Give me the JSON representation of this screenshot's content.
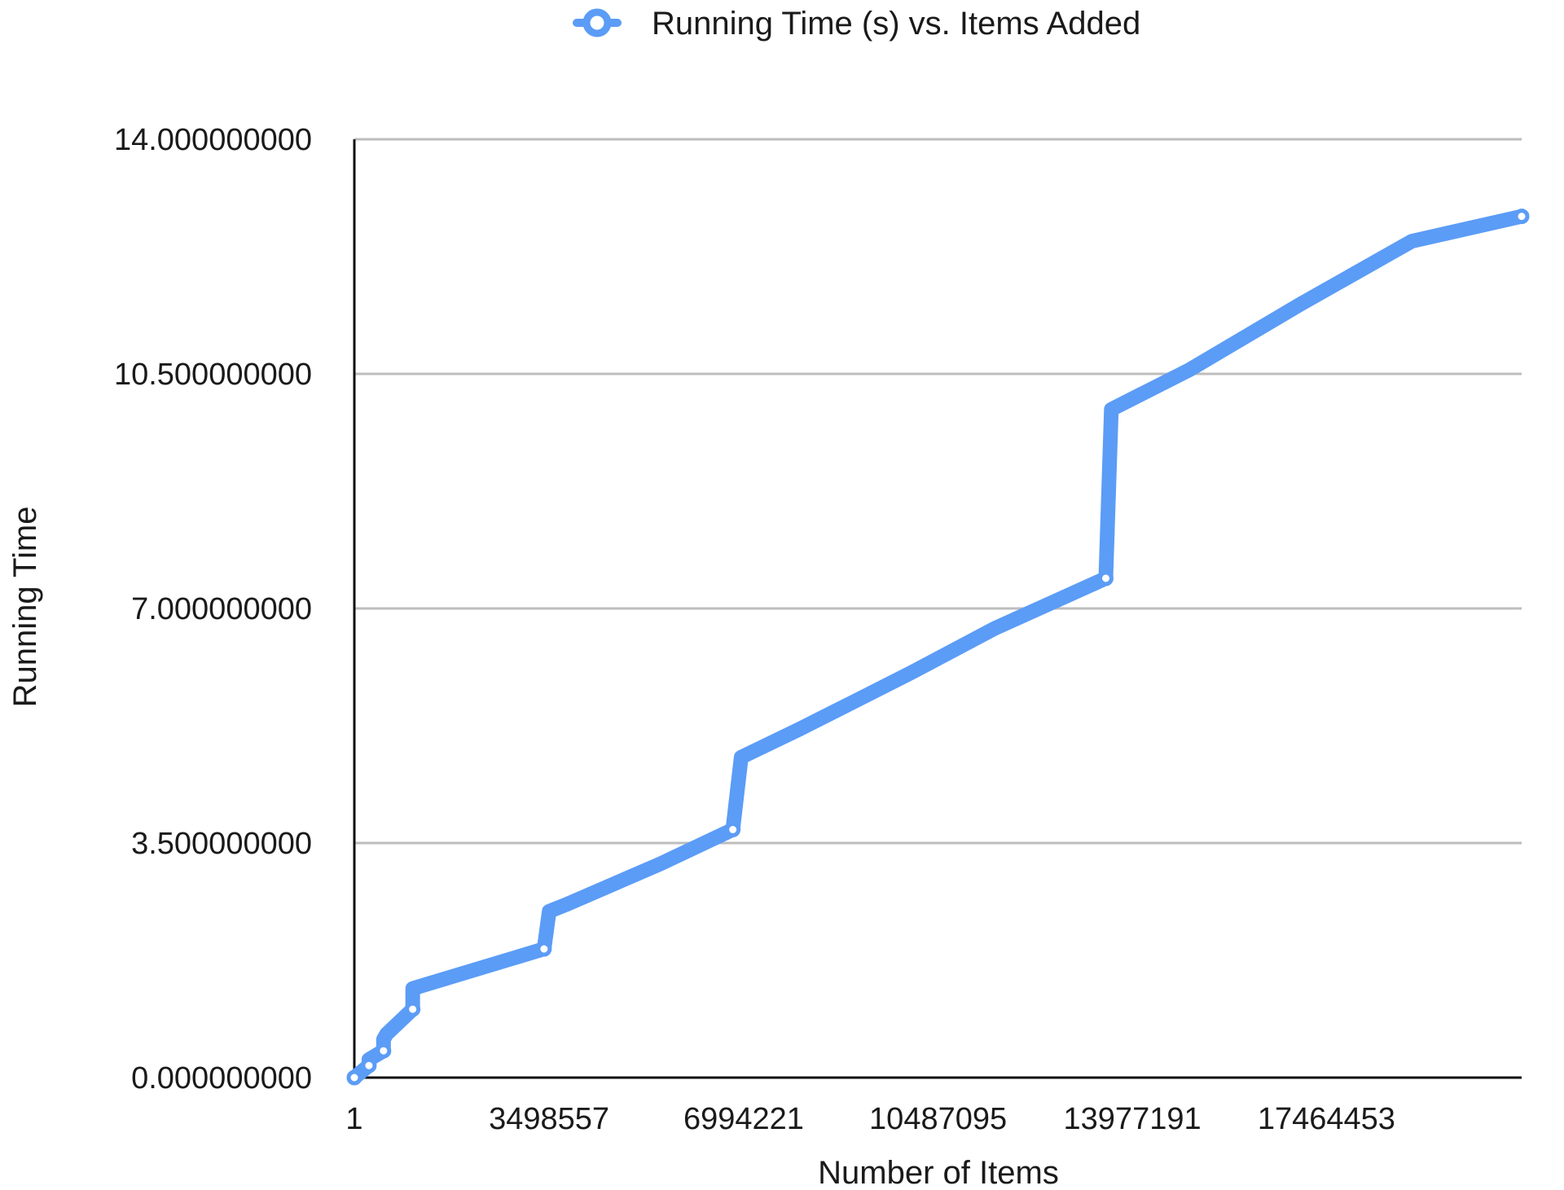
{
  "chart_data": {
    "type": "line",
    "title": "",
    "xlabel": "Number of Items",
    "ylabel": "Running Time",
    "xlim": [
      1,
      20971520
    ],
    "ylim": [
      0,
      14
    ],
    "x_ticks": [
      {
        "value": 1,
        "label": "1"
      },
      {
        "value": 3498557,
        "label": "3498557"
      },
      {
        "value": 6994221,
        "label": "6994221"
      },
      {
        "value": 10487095,
        "label": "10487095"
      },
      {
        "value": 13977191,
        "label": "13977191"
      },
      {
        "value": 17464453,
        "label": "17464453"
      }
    ],
    "y_ticks": [
      {
        "value": 0,
        "label": "0.000000000"
      },
      {
        "value": 3.5,
        "label": "3.500000000"
      },
      {
        "value": 7,
        "label": "7.000000000"
      },
      {
        "value": 10.5,
        "label": "10.500000000"
      },
      {
        "value": 14,
        "label": "14.000000000"
      }
    ],
    "grid": true,
    "legend_position": "top-center",
    "series": [
      {
        "name": "Running Time (s) vs. Items Added",
        "color": "#5b9cf6",
        "points": [
          [
            1,
            0.0
          ],
          [
            131072,
            0.09
          ],
          [
            262144,
            0.18
          ],
          [
            262145,
            0.27
          ],
          [
            524288,
            0.4
          ],
          [
            524289,
            0.57
          ],
          [
            580000,
            0.65
          ],
          [
            1048576,
            1.02
          ],
          [
            1048577,
            1.33
          ],
          [
            3407872,
            1.92
          ],
          [
            3500000,
            2.48
          ],
          [
            3800000,
            2.58
          ],
          [
            5500000,
            3.19
          ],
          [
            6800000,
            3.7
          ],
          [
            6950000,
            4.78
          ],
          [
            8000000,
            5.2
          ],
          [
            9000000,
            5.62
          ],
          [
            10000000,
            6.04
          ],
          [
            11500000,
            6.7
          ],
          [
            13500000,
            7.45
          ],
          [
            13600000,
            9.97
          ],
          [
            15000000,
            10.56
          ],
          [
            17000000,
            11.54
          ],
          [
            19000000,
            12.48
          ],
          [
            20971520,
            12.85
          ]
        ],
        "markers": [
          [
            1,
            0.0
          ],
          [
            262144,
            0.18
          ],
          [
            524288,
            0.4
          ],
          [
            1048576,
            1.02
          ],
          [
            3407872,
            1.92
          ],
          [
            6800000,
            3.7
          ],
          [
            13500000,
            7.45
          ],
          [
            20971520,
            12.85
          ]
        ]
      }
    ]
  }
}
